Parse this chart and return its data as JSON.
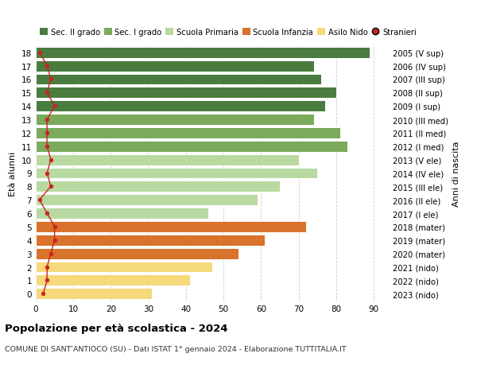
{
  "ages": [
    18,
    17,
    16,
    15,
    14,
    13,
    12,
    11,
    10,
    9,
    8,
    7,
    6,
    5,
    4,
    3,
    2,
    1,
    0
  ],
  "labels_right": [
    "2005 (V sup)",
    "2006 (IV sup)",
    "2007 (III sup)",
    "2008 (II sup)",
    "2009 (I sup)",
    "2010 (III med)",
    "2011 (II med)",
    "2012 (I med)",
    "2013 (V ele)",
    "2014 (IV ele)",
    "2015 (III ele)",
    "2016 (II ele)",
    "2017 (I ele)",
    "2018 (mater)",
    "2019 (mater)",
    "2020 (mater)",
    "2021 (nido)",
    "2022 (nido)",
    "2023 (nido)"
  ],
  "bar_values": [
    89,
    74,
    76,
    80,
    77,
    74,
    81,
    83,
    70,
    75,
    65,
    59,
    46,
    72,
    61,
    54,
    47,
    41,
    31
  ],
  "stranieri_values": [
    1,
    3,
    4,
    3,
    5,
    3,
    3,
    3,
    4,
    3,
    4,
    1,
    3,
    5,
    5,
    4,
    3,
    3,
    2
  ],
  "bar_colors": [
    "#4a7c3f",
    "#4a7c3f",
    "#4a7c3f",
    "#4a7c3f",
    "#4a7c3f",
    "#7aaa5a",
    "#7aaa5a",
    "#7aaa5a",
    "#b8d9a0",
    "#b8d9a0",
    "#b8d9a0",
    "#b8d9a0",
    "#b8d9a0",
    "#d9722a",
    "#d9722a",
    "#d9722a",
    "#f5d97a",
    "#f5d97a",
    "#f5d97a"
  ],
  "legend_labels": [
    "Sec. II grado",
    "Sec. I grado",
    "Scuola Primaria",
    "Scuola Infanzia",
    "Asilo Nido",
    "Stranieri"
  ],
  "legend_colors": [
    "#4a7c3f",
    "#7aaa5a",
    "#b8d9a0",
    "#d9722a",
    "#f5d97a",
    "#cc2222"
  ],
  "stranieri_color": "#cc2222",
  "ylabel_left": "Età alunni",
  "ylabel_right": "Anni di nascita",
  "title": "Popolazione per età scolastica - 2024",
  "subtitle": "COMUNE DI SANT'ANTIOCO (SU) - Dati ISTAT 1° gennaio 2024 - Elaborazione TUTTITALIA.IT",
  "xlim": [
    0,
    94
  ],
  "xticks": [
    0,
    10,
    20,
    30,
    40,
    50,
    60,
    70,
    80,
    90
  ],
  "background_color": "#ffffff",
  "grid_color": "#cccccc"
}
